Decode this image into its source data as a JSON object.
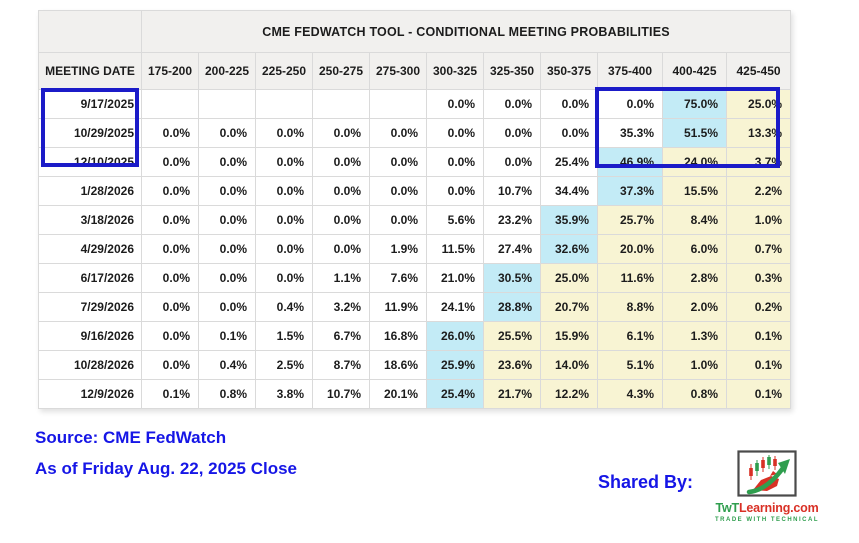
{
  "chart_data": {
    "type": "table",
    "title": "CME FEDWATCH TOOL - CONDITIONAL MEETING PROBABILITIES",
    "row_header": "MEETING DATE",
    "columns": [
      "175-200",
      "200-225",
      "225-250",
      "250-275",
      "275-300",
      "300-325",
      "325-350",
      "350-375",
      "375-400",
      "400-425",
      "425-450"
    ],
    "rows": [
      {
        "date": "9/17/2025",
        "values": [
          "",
          "",
          "",
          "",
          "",
          "0.0%",
          "0.0%",
          "0.0%",
          "0.0%",
          "75.0%",
          "25.0%"
        ],
        "max_col": 9
      },
      {
        "date": "10/29/2025",
        "values": [
          "0.0%",
          "0.0%",
          "0.0%",
          "0.0%",
          "0.0%",
          "0.0%",
          "0.0%",
          "0.0%",
          "35.3%",
          "51.5%",
          "13.3%"
        ],
        "max_col": 9
      },
      {
        "date": "12/10/2025",
        "values": [
          "0.0%",
          "0.0%",
          "0.0%",
          "0.0%",
          "0.0%",
          "0.0%",
          "0.0%",
          "25.4%",
          "46.9%",
          "24.0%",
          "3.7%"
        ],
        "max_col": 8
      },
      {
        "date": "1/28/2026",
        "values": [
          "0.0%",
          "0.0%",
          "0.0%",
          "0.0%",
          "0.0%",
          "0.0%",
          "10.7%",
          "34.4%",
          "37.3%",
          "15.5%",
          "2.2%"
        ],
        "max_col": 8
      },
      {
        "date": "3/18/2026",
        "values": [
          "0.0%",
          "0.0%",
          "0.0%",
          "0.0%",
          "0.0%",
          "5.6%",
          "23.2%",
          "35.9%",
          "25.7%",
          "8.4%",
          "1.0%"
        ],
        "max_col": 7
      },
      {
        "date": "4/29/2026",
        "values": [
          "0.0%",
          "0.0%",
          "0.0%",
          "0.0%",
          "1.9%",
          "11.5%",
          "27.4%",
          "32.6%",
          "20.0%",
          "6.0%",
          "0.7%"
        ],
        "max_col": 7
      },
      {
        "date": "6/17/2026",
        "values": [
          "0.0%",
          "0.0%",
          "0.0%",
          "1.1%",
          "7.6%",
          "21.0%",
          "30.5%",
          "25.0%",
          "11.6%",
          "2.8%",
          "0.3%"
        ],
        "max_col": 6
      },
      {
        "date": "7/29/2026",
        "values": [
          "0.0%",
          "0.0%",
          "0.4%",
          "3.2%",
          "11.9%",
          "24.1%",
          "28.8%",
          "20.7%",
          "8.8%",
          "2.0%",
          "0.2%"
        ],
        "max_col": 6
      },
      {
        "date": "9/16/2026",
        "values": [
          "0.0%",
          "0.1%",
          "1.5%",
          "6.7%",
          "16.8%",
          "26.0%",
          "25.5%",
          "15.9%",
          "6.1%",
          "1.3%",
          "0.1%"
        ],
        "max_col": 5
      },
      {
        "date": "10/28/2026",
        "values": [
          "0.0%",
          "0.4%",
          "2.5%",
          "8.7%",
          "18.6%",
          "25.9%",
          "23.6%",
          "14.0%",
          "5.1%",
          "1.0%",
          "0.1%"
        ],
        "max_col": 5
      },
      {
        "date": "12/9/2026",
        "values": [
          "0.1%",
          "0.8%",
          "3.8%",
          "10.7%",
          "20.1%",
          "25.4%",
          "21.7%",
          "12.2%",
          "4.3%",
          "0.8%",
          "0.1%"
        ],
        "max_col": 5
      }
    ],
    "highlight_rule": "cell at max_col shaded cyan; cells to the right of max_col shaded yellow",
    "annotations": {
      "boxed_dates": [
        "9/17/2025",
        "10/29/2025",
        "12/10/2025"
      ],
      "boxed_columns": [
        "375-400",
        "400-425",
        "425-450"
      ]
    }
  },
  "footer": {
    "source_line_1": "Source: CME FedWatch",
    "source_line_2": "As of Friday Aug. 22, 2025 Close",
    "shared_by_label": "Shared By:",
    "logo": {
      "name_green": "TwT",
      "name_red": "Learning.com",
      "tagline": "TRADE WITH TECHNICAL"
    }
  },
  "colors": {
    "highlight_cyan": "#c3ebf6",
    "highlight_yellow": "#f8f4d3",
    "annotation_blue": "#1b1bc8",
    "footer_text_blue": "#1616e6",
    "header_bg": "#f1f0ee",
    "logo_red": "#d93025",
    "logo_green": "#2f9e4e"
  }
}
